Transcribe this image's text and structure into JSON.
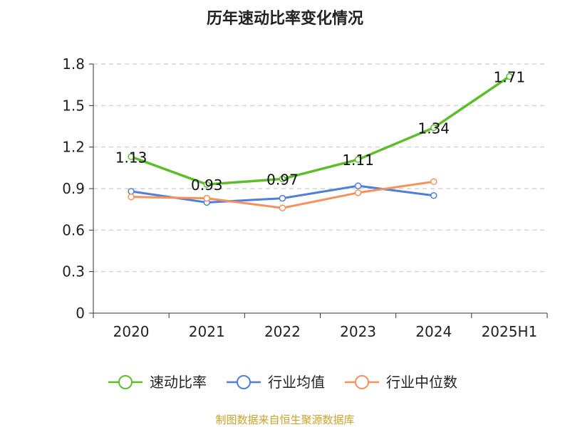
{
  "chart_data": {
    "type": "line",
    "title": "历年速动比率变化情况",
    "xlabel": "",
    "ylabel": "",
    "categories": [
      "2020",
      "2021",
      "2022",
      "2023",
      "2024",
      "2025H1"
    ],
    "y_ticks": [
      "0",
      "0.3",
      "0.6",
      "0.9",
      "1.2",
      "1.5",
      "1.8"
    ],
    "ylim": [
      0,
      1.8
    ],
    "grid": true,
    "legend_position": "bottom",
    "series": [
      {
        "name": "速动比率",
        "color": "#5cbf2a",
        "values": [
          1.13,
          0.93,
          0.97,
          1.11,
          1.34,
          1.71
        ],
        "data_labels": [
          "1.13",
          "0.93",
          "0.97",
          "1.11",
          "1.34",
          "1.71"
        ]
      },
      {
        "name": "行业均值",
        "color": "#4f7fdb",
        "values": [
          0.88,
          0.8,
          0.83,
          0.92,
          0.85,
          null
        ]
      },
      {
        "name": "行业中位数",
        "color": "#f5915a",
        "values": [
          0.84,
          0.83,
          0.76,
          0.87,
          0.95,
          null
        ]
      }
    ],
    "source": "制图数据来自恒生聚源数据库"
  }
}
